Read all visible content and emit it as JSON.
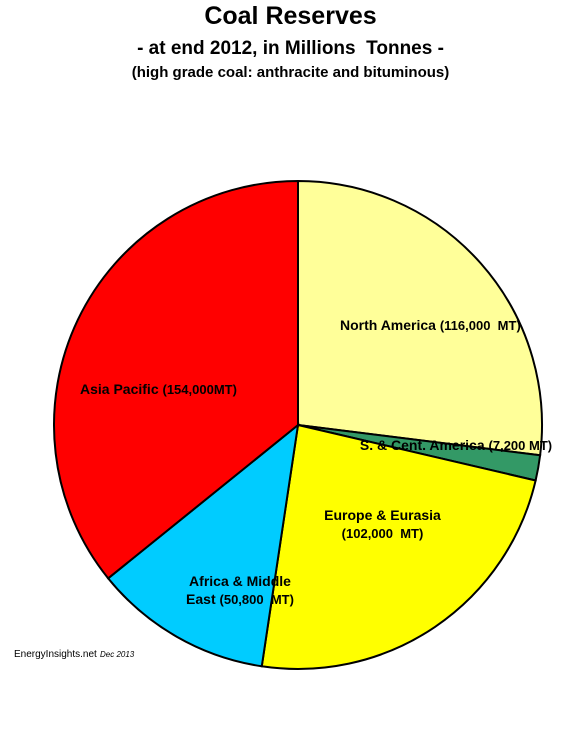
{
  "chart_data": {
    "type": "pie",
    "title": "Coal Reserves",
    "subtitle": "- at end 2012, in Millions  Tonnes -",
    "note": "(high grade coal: anthracite and bituminous)",
    "categories": [
      "North America",
      "S. & Cent. America",
      "Europe & Eurasia",
      "Africa & Middle East",
      "Asia Pacific"
    ],
    "values": [
      116000,
      7200,
      102000,
      50800,
      154000
    ],
    "value_labels": [
      "(116,000  MT)",
      "(7,200 MT)",
      "(102,000  MT)",
      "(50,800  MT)",
      "(154,000MT)"
    ],
    "colors": [
      "#ffff99",
      "#339966",
      "#ffff00",
      "#00ccff",
      "#ff0000"
    ],
    "source": "EnergyInsights.net",
    "date": "Dec 2013"
  }
}
